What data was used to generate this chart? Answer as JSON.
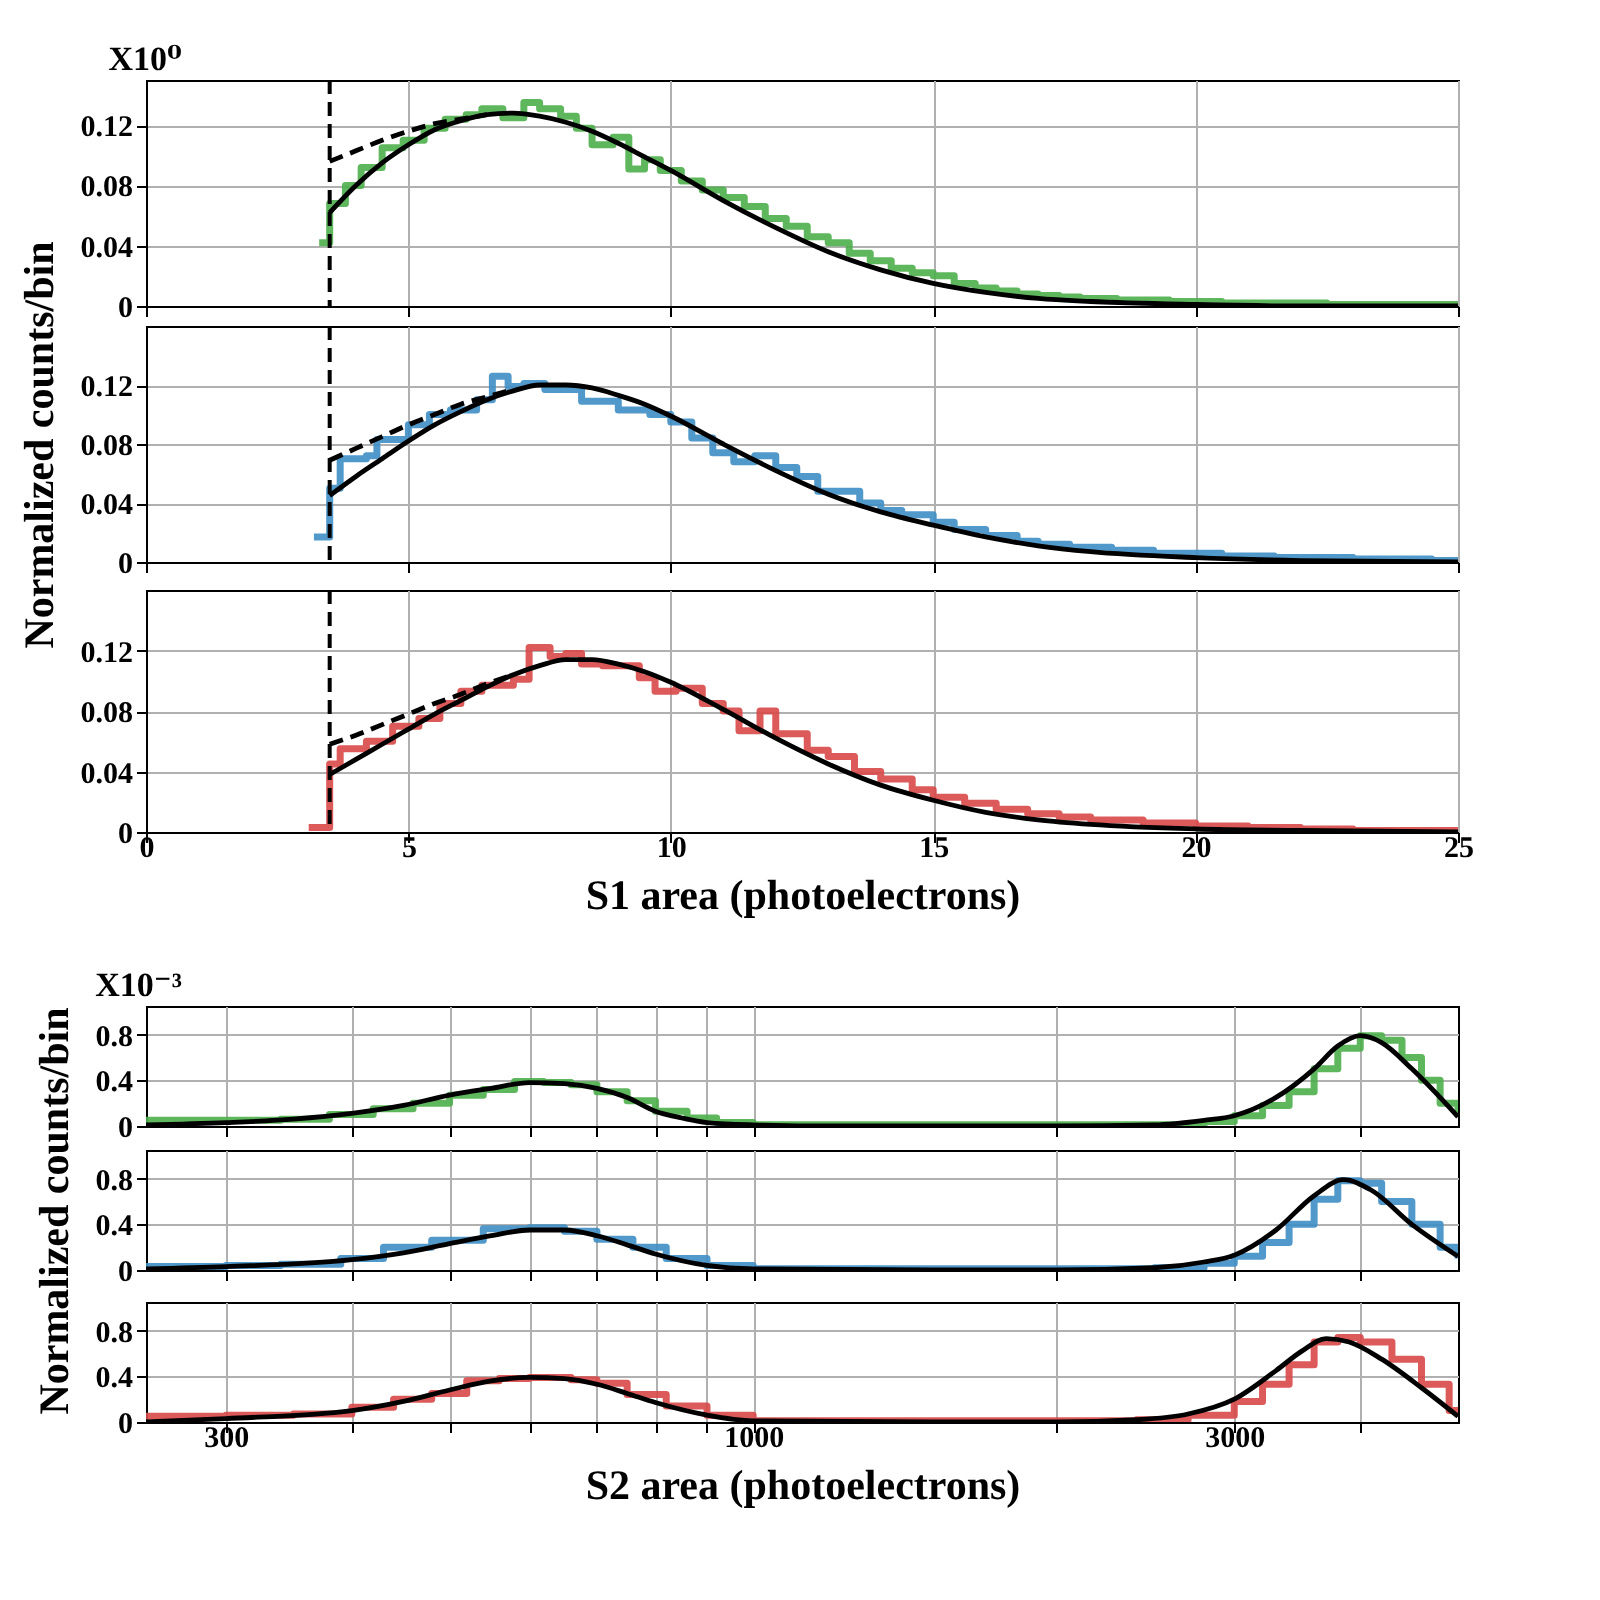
{
  "chart_data": [
    {
      "type": "step",
      "xlim": [
        0,
        25
      ],
      "ylim": [
        0,
        0.15
      ],
      "xticks": [
        0,
        5,
        10,
        15,
        20,
        25
      ],
      "yticks": [
        0,
        0.04,
        0.08,
        0.12
      ],
      "grid": true,
      "tick_labels": "y",
      "annotations": [
        "X10⁰"
      ],
      "ref_lines": [
        {
          "axis": "x",
          "value": 3.5,
          "color": "#000000",
          "line_style": "dashed"
        }
      ],
      "series": [
        {
          "color": "#4daf4a",
          "x": [
            3.3,
            3.5,
            3.8,
            4.1,
            4.5,
            4.9,
            5.3,
            5.7,
            6.1,
            6.4,
            6.8,
            7.2,
            7.5,
            7.9,
            8.2,
            8.5,
            8.9,
            9.2,
            9.5,
            9.8,
            10.2,
            10.6,
            11.0,
            11.4,
            11.8,
            12.2,
            12.6,
            13.0,
            13.4,
            13.8,
            14.2,
            14.6,
            15.0,
            15.4,
            15.8,
            16.2,
            16.6,
            17.0,
            17.4,
            17.8,
            18.5,
            19.5,
            20.5,
            21.5,
            22.5,
            23.5,
            25
          ],
          "values": [
            0.042,
            0.068,
            0.08,
            0.092,
            0.105,
            0.11,
            0.118,
            0.124,
            0.127,
            0.131,
            0.125,
            0.135,
            0.131,
            0.126,
            0.118,
            0.107,
            0.112,
            0.091,
            0.097,
            0.09,
            0.083,
            0.077,
            0.072,
            0.066,
            0.058,
            0.053,
            0.046,
            0.042,
            0.035,
            0.03,
            0.025,
            0.022,
            0.02,
            0.015,
            0.012,
            0.01,
            0.008,
            0.007,
            0.006,
            0.005,
            0.004,
            0.003,
            0.002,
            0.002,
            0.001,
            0.001,
            0.001
          ]
        },
        {
          "type": "line",
          "color": "#000000",
          "x": [
            3.5,
            4,
            4.5,
            5,
            5.5,
            6,
            6.5,
            7,
            7.5,
            8,
            8.5,
            9,
            9.5,
            10,
            11,
            12,
            13,
            14,
            15,
            16,
            17,
            18,
            20,
            22,
            25
          ],
          "values": [
            0.062,
            0.08,
            0.095,
            0.107,
            0.117,
            0.123,
            0.127,
            0.128,
            0.126,
            0.122,
            0.116,
            0.108,
            0.099,
            0.09,
            0.07,
            0.052,
            0.036,
            0.024,
            0.015,
            0.009,
            0.005,
            0.003,
            0.001,
            0,
            0
          ]
        },
        {
          "type": "line",
          "color": "#000000",
          "line_style": "dashed",
          "x": [
            3.5,
            4,
            4.5,
            5,
            5.5,
            6,
            6.5
          ],
          "values": [
            0.096,
            0.103,
            0.11,
            0.116,
            0.121,
            0.124,
            0.127
          ]
        }
      ]
    },
    {
      "type": "step",
      "xlim": [
        0,
        25
      ],
      "ylim": [
        0,
        0.16
      ],
      "xticks": [
        0,
        5,
        10,
        15,
        20,
        25
      ],
      "yticks": [
        0,
        0.04,
        0.08,
        0.12
      ],
      "grid": true,
      "tick_labels": "y",
      "ylabel": "Normalized counts/bin",
      "ref_lines": [
        {
          "axis": "x",
          "value": 3.5,
          "color": "#000000",
          "line_style": "dashed"
        }
      ],
      "series": [
        {
          "color": "#3e8ec4",
          "x": [
            3.2,
            3.5,
            3.7,
            4.2,
            4.4,
            5.0,
            5.4,
            5.8,
            6.3,
            6.6,
            6.9,
            7.2,
            7.6,
            8.0,
            8.3,
            8.6,
            9.0,
            9.6,
            10.0,
            10.4,
            10.8,
            11.2,
            11.6,
            12.0,
            12.4,
            12.8,
            13.6,
            14.0,
            14.4,
            15.0,
            15.4,
            16.0,
            16.6,
            17.0,
            17.6,
            18.4,
            19.2,
            20.5,
            21.5,
            23,
            24.5,
            25
          ],
          "values": [
            0.017,
            0.05,
            0.07,
            0.072,
            0.083,
            0.093,
            0.1,
            0.103,
            0.11,
            0.126,
            0.119,
            0.121,
            0.117,
            0.117,
            0.109,
            0.109,
            0.103,
            0.1,
            0.095,
            0.084,
            0.074,
            0.068,
            0.072,
            0.064,
            0.058,
            0.048,
            0.04,
            0.035,
            0.032,
            0.027,
            0.022,
            0.018,
            0.014,
            0.012,
            0.01,
            0.008,
            0.006,
            0.004,
            0.003,
            0.002,
            0.001,
            0.001
          ]
        },
        {
          "type": "line",
          "color": "#000000",
          "x": [
            3.5,
            4,
            4.5,
            5,
            5.5,
            6,
            6.5,
            7,
            7.5,
            8,
            8.5,
            9,
            9.5,
            10,
            11,
            12,
            13,
            14,
            15,
            16,
            17,
            18,
            20,
            22,
            25
          ],
          "values": [
            0.045,
            0.058,
            0.07,
            0.082,
            0.093,
            0.102,
            0.11,
            0.116,
            0.12,
            0.12,
            0.118,
            0.113,
            0.107,
            0.099,
            0.08,
            0.062,
            0.046,
            0.034,
            0.025,
            0.017,
            0.011,
            0.007,
            0.003,
            0.001,
            0
          ]
        },
        {
          "type": "line",
          "color": "#000000",
          "line_style": "dashed",
          "x": [
            3.5,
            4,
            4.5,
            5,
            5.5,
            6,
            6.5,
            7
          ],
          "values": [
            0.069,
            0.077,
            0.085,
            0.093,
            0.1,
            0.107,
            0.112,
            0.117
          ]
        }
      ]
    },
    {
      "type": "step",
      "xlim": [
        0,
        25
      ],
      "ylim": [
        0,
        0.16
      ],
      "xticks": [
        0,
        5,
        10,
        15,
        20,
        25
      ],
      "yticks": [
        0,
        0.04,
        0.08,
        0.12
      ],
      "grid": true,
      "xlabel": "S1 area (photoelectrons)",
      "ref_lines": [
        {
          "axis": "x",
          "value": 3.5,
          "color": "#000000",
          "line_style": "dashed"
        }
      ],
      "series": [
        {
          "color": "#d94848",
          "x": [
            3.1,
            3.5,
            3.7,
            4.2,
            4.7,
            5.2,
            5.6,
            6.0,
            6.4,
            7.0,
            7.3,
            7.7,
            8.0,
            8.3,
            8.7,
            9.4,
            9.7,
            10.1,
            10.6,
            11.0,
            11.3,
            11.7,
            12.0,
            12.6,
            13.0,
            13.5,
            14.0,
            14.6,
            15.0,
            15.6,
            16.2,
            16.8,
            17.4,
            18.0,
            19.0,
            20.0,
            21,
            22,
            23,
            25
          ],
          "values": [
            0.003,
            0.045,
            0.055,
            0.06,
            0.07,
            0.075,
            0.085,
            0.093,
            0.097,
            0.101,
            0.122,
            0.116,
            0.118,
            0.111,
            0.11,
            0.102,
            0.093,
            0.095,
            0.085,
            0.08,
            0.067,
            0.08,
            0.065,
            0.054,
            0.05,
            0.04,
            0.035,
            0.028,
            0.023,
            0.019,
            0.015,
            0.012,
            0.01,
            0.008,
            0.006,
            0.004,
            0.003,
            0.002,
            0.001,
            0.001
          ]
        },
        {
          "type": "line",
          "color": "#000000",
          "x": [
            3.5,
            4,
            4.5,
            5,
            5.5,
            6,
            6.5,
            7,
            7.5,
            8,
            8.5,
            9,
            9.5,
            10,
            11,
            12,
            13,
            14,
            15,
            16,
            17,
            18,
            20,
            22,
            25
          ],
          "values": [
            0.038,
            0.048,
            0.058,
            0.068,
            0.078,
            0.087,
            0.096,
            0.104,
            0.11,
            0.114,
            0.114,
            0.111,
            0.106,
            0.099,
            0.081,
            0.062,
            0.045,
            0.031,
            0.021,
            0.013,
            0.008,
            0.005,
            0.002,
            0.001,
            0
          ]
        },
        {
          "type": "line",
          "color": "#000000",
          "line_style": "dashed",
          "x": [
            3.5,
            4,
            4.5,
            5,
            5.5,
            6,
            6.5,
            7
          ],
          "values": [
            0.058,
            0.064,
            0.071,
            0.078,
            0.085,
            0.091,
            0.098,
            0.104
          ]
        }
      ]
    },
    {
      "type": "step",
      "log": "x",
      "xlim": [
        250,
        5000
      ],
      "ylim": [
        0,
        1.05
      ],
      "xticks": [
        300,
        {
          "value": 400,
          "label": null
        },
        {
          "value": 500,
          "label": null
        },
        {
          "value": 600,
          "label": null
        },
        {
          "value": 700,
          "label": null
        },
        {
          "value": 800,
          "label": null
        },
        {
          "value": 900,
          "label": null
        },
        1000,
        {
          "value": 2000,
          "label": null
        },
        3000,
        {
          "value": 4000,
          "label": null
        }
      ],
      "yticks": [
        0,
        0.4,
        0.8
      ],
      "grid": true,
      "tick_labels": "y",
      "annotations": [
        "X10⁻³"
      ],
      "series": [
        {
          "color": "#4daf4a",
          "x": [
            250,
            300,
            340,
            380,
            420,
            460,
            500,
            540,
            580,
            620,
            660,
            700,
            750,
            800,
            860,
            920,
            1000,
            1200,
            1500,
            2000,
            2500,
            2800,
            3000,
            3200,
            3400,
            3600,
            3800,
            4000,
            4200,
            4400,
            4600,
            4800,
            5000
          ],
          "values": [
            0.05,
            0.05,
            0.06,
            0.1,
            0.15,
            0.2,
            0.27,
            0.32,
            0.39,
            0.38,
            0.36,
            0.3,
            0.22,
            0.13,
            0.07,
            0.03,
            0.01,
            0.01,
            0.01,
            0.01,
            0.01,
            0.04,
            0.09,
            0.18,
            0.3,
            0.5,
            0.68,
            0.79,
            0.75,
            0.6,
            0.4,
            0.2,
            0.08
          ]
        },
        {
          "type": "line",
          "color": "#000000",
          "x": [
            250,
            300,
            350,
            400,
            450,
            500,
            550,
            600,
            650,
            700,
            750,
            800,
            850,
            900,
            1000,
            1200,
            1500,
            2000,
            2500,
            2800,
            3000,
            3300,
            3600,
            3800,
            4000,
            4200,
            4500,
            5000
          ],
          "values": [
            0.01,
            0.03,
            0.06,
            0.11,
            0.18,
            0.27,
            0.33,
            0.38,
            0.37,
            0.33,
            0.25,
            0.13,
            0.07,
            0.03,
            0.01,
            0,
            0,
            0,
            0.01,
            0.05,
            0.09,
            0.25,
            0.5,
            0.7,
            0.79,
            0.73,
            0.5,
            0.08
          ]
        }
      ]
    },
    {
      "type": "step",
      "log": "x",
      "xlim": [
        250,
        5000
      ],
      "ylim": [
        0,
        1.05
      ],
      "xticks": [
        300,
        {
          "value": 400,
          "label": null
        },
        {
          "value": 500,
          "label": null
        },
        {
          "value": 600,
          "label": null
        },
        {
          "value": 700,
          "label": null
        },
        {
          "value": 800,
          "label": null
        },
        {
          "value": 900,
          "label": null
        },
        1000,
        {
          "value": 2000,
          "label": null
        },
        3000,
        {
          "value": 4000,
          "label": null
        }
      ],
      "yticks": [
        0,
        0.4,
        0.8
      ],
      "grid": true,
      "tick_labels": "y",
      "ylabel": "Normalized counts/bin",
      "series": [
        {
          "color": "#3e8ec4",
          "x": [
            250,
            300,
            340,
            390,
            430,
            480,
            540,
            600,
            650,
            700,
            760,
            820,
            900,
            1000,
            2000,
            2500,
            2800,
            3000,
            3200,
            3400,
            3600,
            3800,
            4000,
            4200,
            4500,
            4800,
            5000
          ],
          "values": [
            0.03,
            0.04,
            0.05,
            0.1,
            0.2,
            0.26,
            0.36,
            0.37,
            0.34,
            0.27,
            0.2,
            0.1,
            0.04,
            0.01,
            0.01,
            0.02,
            0.06,
            0.12,
            0.24,
            0.4,
            0.62,
            0.78,
            0.76,
            0.6,
            0.4,
            0.2,
            0.1
          ]
        },
        {
          "type": "line",
          "color": "#000000",
          "x": [
            250,
            300,
            400,
            450,
            500,
            550,
            600,
            650,
            700,
            750,
            800,
            900,
            1000,
            1500,
            2000,
            2500,
            2800,
            3000,
            3300,
            3600,
            3850,
            4100,
            4500,
            5000
          ],
          "values": [
            0.01,
            0.03,
            0.09,
            0.15,
            0.23,
            0.3,
            0.35,
            0.35,
            0.3,
            0.22,
            0.14,
            0.04,
            0.01,
            0,
            0,
            0.02,
            0.07,
            0.13,
            0.35,
            0.65,
            0.79,
            0.7,
            0.4,
            0.12
          ]
        }
      ]
    },
    {
      "type": "step",
      "log": "x",
      "xlim": [
        250,
        5000
      ],
      "ylim": [
        0,
        1.05
      ],
      "xticks": [
        300,
        {
          "value": 400,
          "label": null
        },
        {
          "value": 500,
          "label": null
        },
        {
          "value": 600,
          "label": null
        },
        {
          "value": 700,
          "label": null
        },
        {
          "value": 800,
          "label": null
        },
        {
          "value": 900,
          "label": null
        },
        1000,
        {
          "value": 2000,
          "label": null
        },
        3000,
        {
          "value": 4000,
          "label": null
        }
      ],
      "yticks": [
        0,
        0.4,
        0.8
      ],
      "grid": true,
      "xlabel": "S2 area (photoelectrons)",
      "series": [
        {
          "color": "#d94848",
          "x": [
            250,
            300,
            350,
            400,
            440,
            480,
            520,
            560,
            600,
            660,
            700,
            750,
            820,
            900,
            1000,
            2000,
            2400,
            2700,
            3000,
            3200,
            3400,
            3600,
            3800,
            4000,
            4300,
            4600,
            4900,
            5000
          ],
          "values": [
            0.05,
            0.06,
            0.07,
            0.13,
            0.2,
            0.25,
            0.36,
            0.38,
            0.39,
            0.37,
            0.34,
            0.24,
            0.14,
            0.06,
            0.01,
            0.01,
            0.02,
            0.06,
            0.18,
            0.33,
            0.5,
            0.7,
            0.74,
            0.7,
            0.55,
            0.33,
            0.1,
            0.05
          ]
        },
        {
          "type": "line",
          "color": "#000000",
          "x": [
            250,
            300,
            400,
            450,
            500,
            550,
            600,
            650,
            700,
            750,
            800,
            900,
            1000,
            1500,
            2000,
            2400,
            2700,
            3000,
            3300,
            3500,
            3700,
            3900,
            4200,
            4600,
            5000
          ],
          "values": [
            0,
            0.03,
            0.1,
            0.18,
            0.28,
            0.36,
            0.39,
            0.38,
            0.33,
            0.25,
            0.17,
            0.06,
            0.01,
            0,
            0,
            0.02,
            0.07,
            0.2,
            0.45,
            0.62,
            0.73,
            0.7,
            0.55,
            0.3,
            0.05
          ]
        }
      ]
    }
  ]
}
